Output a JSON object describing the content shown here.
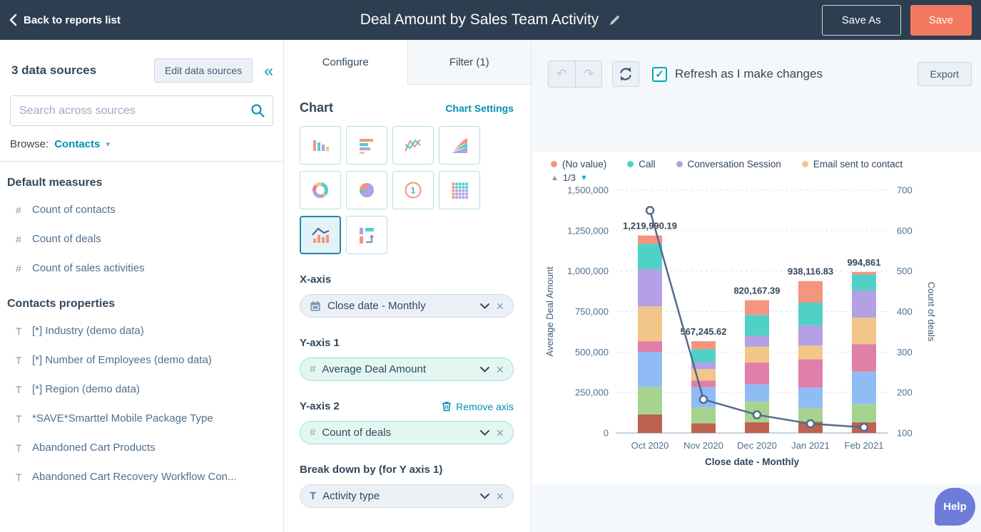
{
  "topbar": {
    "back_label": "Back to reports list",
    "title": "Deal Amount by Sales Team Activity",
    "save_as": "Save As",
    "save": "Save"
  },
  "sidebar": {
    "sources_header": "3 data sources",
    "edit_button": "Edit data sources",
    "search_placeholder": "Search across sources",
    "browse_label": "Browse:",
    "browse_value": "Contacts",
    "sections": [
      {
        "heading": "Default measures",
        "items": [
          {
            "icon": "#",
            "label": "Count of contacts"
          },
          {
            "icon": "#",
            "label": "Count of deals"
          },
          {
            "icon": "#",
            "label": "Count of sales activities"
          }
        ]
      },
      {
        "heading": "Contacts properties",
        "items": [
          {
            "icon": "T",
            "label": "[*] Industry (demo data)"
          },
          {
            "icon": "T",
            "label": "[*] Number of Employees (demo data)"
          },
          {
            "icon": "T",
            "label": "[*] Region (demo data)"
          },
          {
            "icon": "T",
            "label": "*SAVE*Smarttel Mobile Package Type"
          },
          {
            "icon": "T",
            "label": "Abandoned Cart Products"
          },
          {
            "icon": "T",
            "label": "Abandoned Cart Recovery Workflow Con..."
          }
        ]
      }
    ]
  },
  "configure_panel": {
    "tabs": [
      {
        "label": "Configure",
        "active": true
      },
      {
        "label": "Filter (1)",
        "active": false
      }
    ],
    "chart_heading": "Chart",
    "chart_settings": "Chart Settings",
    "chart_types": [
      {
        "name": "column",
        "selected": false
      },
      {
        "name": "horizontal-bar",
        "selected": false
      },
      {
        "name": "line",
        "selected": false
      },
      {
        "name": "area",
        "selected": false
      },
      {
        "name": "donut",
        "selected": false
      },
      {
        "name": "pie",
        "selected": false
      },
      {
        "name": "single-number",
        "selected": false
      },
      {
        "name": "pivot-grid",
        "selected": false
      },
      {
        "name": "combo",
        "selected": true
      },
      {
        "name": "path",
        "selected": false
      }
    ],
    "x_axis": {
      "label": "X-axis",
      "value": "Close date - Monthly"
    },
    "y_axis_1": {
      "label": "Y-axis 1",
      "value": "Average Deal Amount"
    },
    "y_axis_2": {
      "label": "Y-axis 2",
      "value": "Count of deals",
      "remove_label": "Remove axis"
    },
    "breakdown": {
      "label": "Break down by (for Y axis 1)",
      "value": "Activity type"
    }
  },
  "report_panel": {
    "refresh_label": "Refresh as I make changes",
    "export": "Export",
    "pager": "1/3",
    "help": "Help"
  },
  "chart_data": {
    "type": "combo (stacked column + line)",
    "categories": [
      "Oct 2020",
      "Nov 2020",
      "Dec 2020",
      "Jan 2021",
      "Feb 2021"
    ],
    "x_title": "Close date - Monthly",
    "y1": {
      "title": "Average Deal Amount",
      "min": 0,
      "max": 1500000,
      "ticks": [
        "1,500,000",
        "1,250,000",
        "1,000,000",
        "750,000",
        "500,000",
        "250,000",
        "0"
      ]
    },
    "y2": {
      "title": "Count of deals",
      "min": 100,
      "max": 700,
      "ticks": [
        "700",
        "600",
        "500",
        "400",
        "300",
        "200",
        "100"
      ]
    },
    "grid": "dashed horizontal",
    "legend_visible_page": [
      {
        "name": "(No value)",
        "color": "#f59480"
      },
      {
        "name": "Call",
        "color": "#4fd1c5"
      },
      {
        "name": "Conversation Session",
        "color": "#b4a0e5"
      },
      {
        "name": "Email sent to contact",
        "color": "#f2c588"
      }
    ],
    "legend_pagination": "1/3",
    "bar_totals": [
      1219990.19,
      567245.62,
      820167.39,
      938116.83,
      994861
    ],
    "bar_total_labels": [
      "1,219,990.19",
      "567,245.62",
      "820,167.39",
      "938,116.83",
      "994,861"
    ],
    "stack_series_bottom_to_top": [
      {
        "name": "",
        "color": "#bf6252",
        "values": [
          115000,
          60000,
          67000,
          70000,
          67000
        ]
      },
      {
        "name": "",
        "color": "#a6d48f",
        "values": [
          170000,
          97000,
          128000,
          85000,
          112000
        ]
      },
      {
        "name": "",
        "color": "#8fbcf5",
        "values": [
          215000,
          126000,
          105000,
          125000,
          200000
        ]
      },
      {
        "name": "",
        "color": "#e07fa8",
        "values": [
          67000,
          41000,
          135000,
          175000,
          170000
        ]
      },
      {
        "name": "Email sent to contact",
        "color": "#f2c588",
        "values": [
          215000,
          71000,
          98000,
          85000,
          163000
        ]
      },
      {
        "name": "Conversation Session",
        "color": "#b4a0e5",
        "values": [
          230000,
          41000,
          68000,
          125000,
          170000
        ]
      },
      {
        "name": "Call",
        "color": "#4fd1c5",
        "values": [
          157000,
          81000,
          128000,
          140000,
          97000
        ]
      },
      {
        "name": "(No value)",
        "color": "#f59480",
        "values": [
          50990.19,
          50245.62,
          91167.39,
          133116.83,
          15861
        ]
      }
    ],
    "line_series": {
      "name": "Count of deals",
      "axis": "y2",
      "color": "#536a8f",
      "values": [
        650,
        183,
        145,
        123,
        114
      ]
    }
  }
}
